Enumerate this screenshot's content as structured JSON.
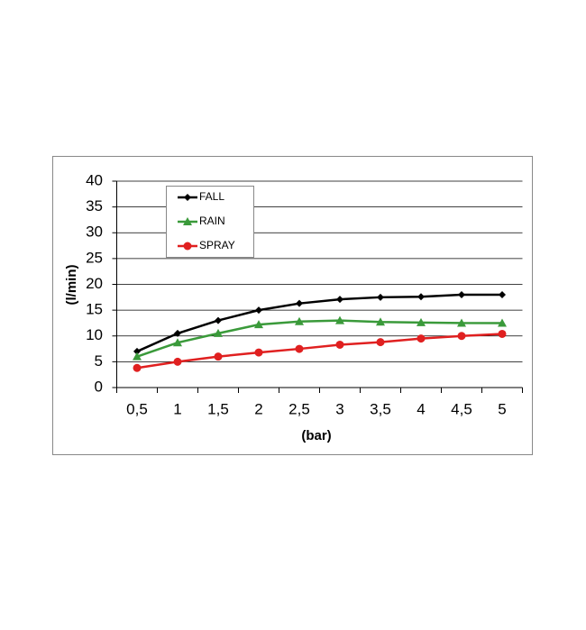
{
  "chart_data": {
    "type": "line",
    "xlabel": "(bar)",
    "ylabel": "(l/min)",
    "categories": [
      "0,5",
      "1",
      "1,5",
      "2",
      "2,5",
      "3",
      "3,5",
      "4",
      "4,5",
      "5"
    ],
    "series": [
      {
        "name": "FALL",
        "color": "#000000",
        "marker": "diamond",
        "values": [
          7,
          10.5,
          13,
          15,
          16.3,
          17.1,
          17.5,
          17.6,
          18,
          18
        ]
      },
      {
        "name": "RAIN",
        "color": "#3a9a3a",
        "marker": "triangle",
        "values": [
          6,
          8.7,
          10.5,
          12.2,
          12.8,
          13,
          12.7,
          12.6,
          12.5,
          12.5
        ]
      },
      {
        "name": "SPRAY",
        "color": "#e02020",
        "marker": "circle",
        "values": [
          3.8,
          5,
          6,
          6.8,
          7.5,
          8.3,
          8.8,
          9.5,
          10,
          10.4
        ]
      }
    ],
    "ylim": [
      0,
      40
    ],
    "yticks": [
      0,
      5,
      10,
      15,
      20,
      25,
      30,
      35,
      40
    ],
    "grid": true,
    "legend": "upper left"
  }
}
